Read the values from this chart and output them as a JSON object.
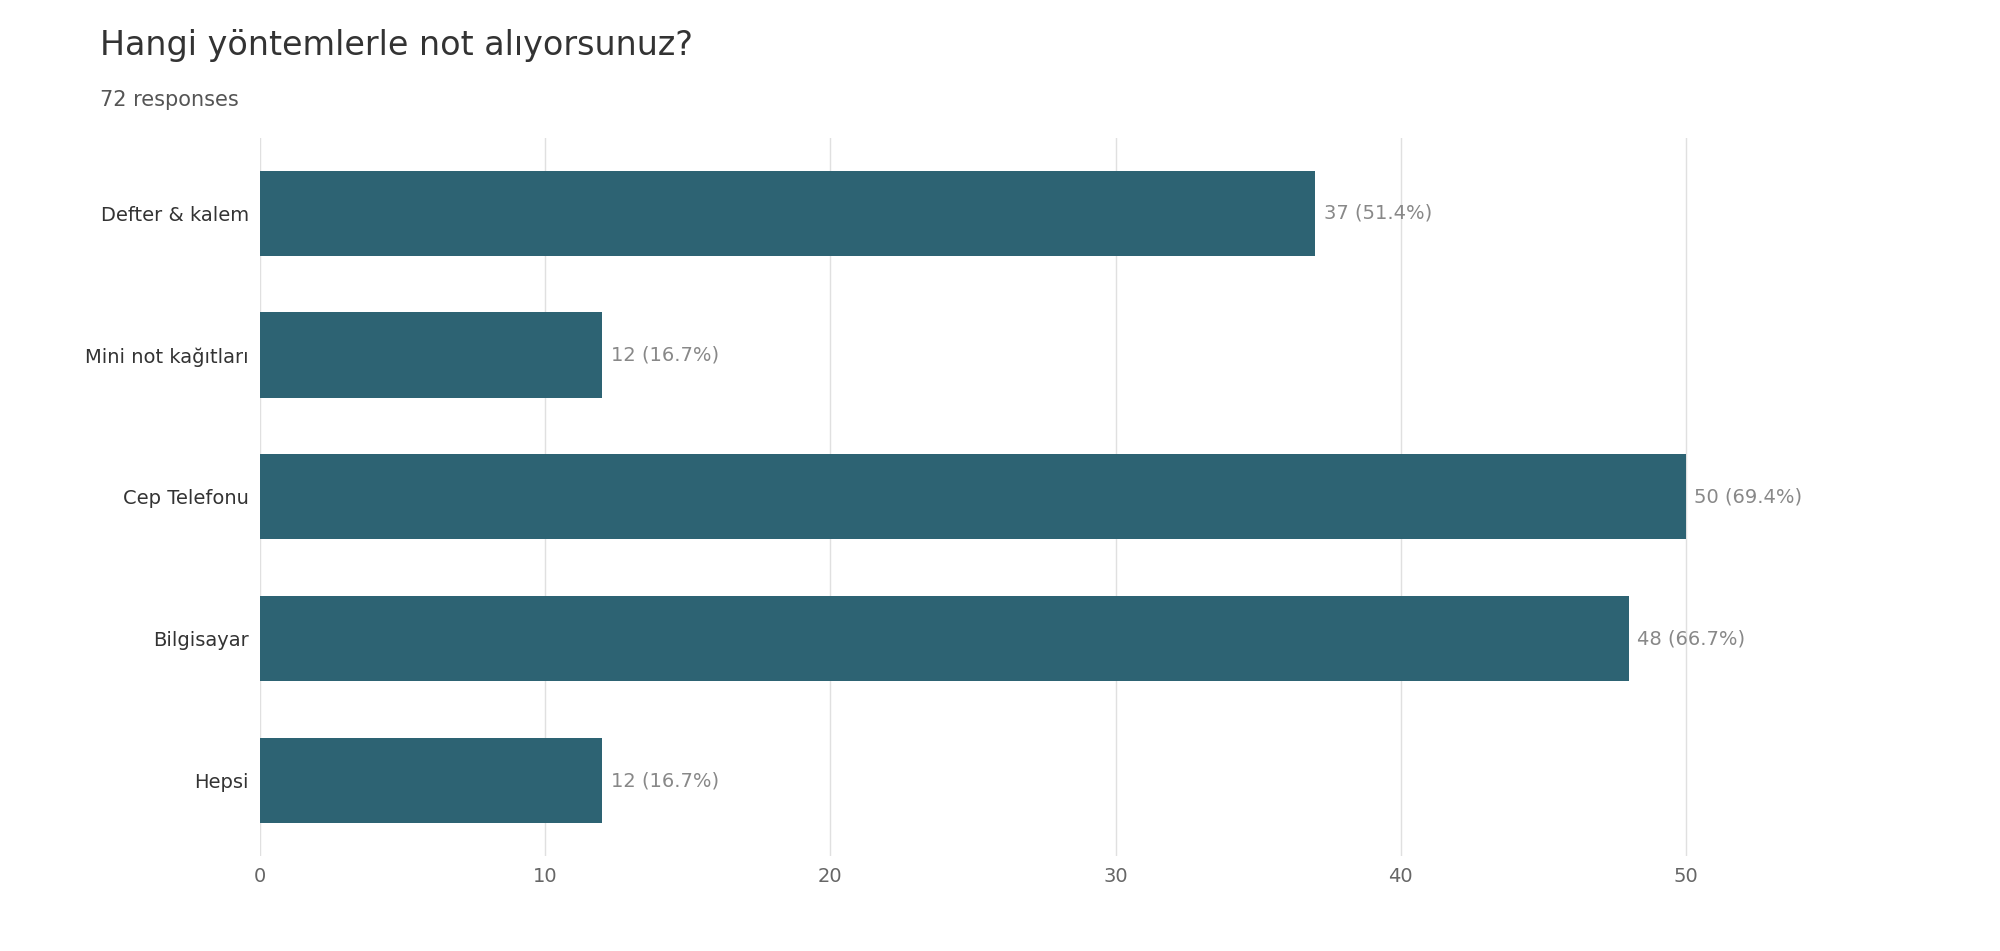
{
  "title": "Hangi yöntemlerle not alıyorsunuz?",
  "subtitle": "72 responses",
  "categories": [
    "Defter & kalem",
    "Mini not kağıtları",
    "Cep Telefonu",
    "Bilgisayar",
    "Hepsi"
  ],
  "values": [
    37,
    12,
    50,
    48,
    12
  ],
  "labels": [
    "37 (51.4%)",
    "12 (16.7%)",
    "50 (69.4%)",
    "48 (66.7%)",
    "12 (16.7%)"
  ],
  "bar_color": "#2d6373",
  "background_color": "#ffffff",
  "title_fontsize": 24,
  "subtitle_fontsize": 15,
  "label_fontsize": 14,
  "ytick_fontsize": 14,
  "xtick_fontsize": 14,
  "xlim": [
    0,
    54
  ],
  "xticks": [
    0,
    10,
    20,
    30,
    40,
    50
  ],
  "grid_color": "#e0e0e0",
  "text_color": "#333333",
  "label_color": "#888888",
  "bar_height": 0.6
}
